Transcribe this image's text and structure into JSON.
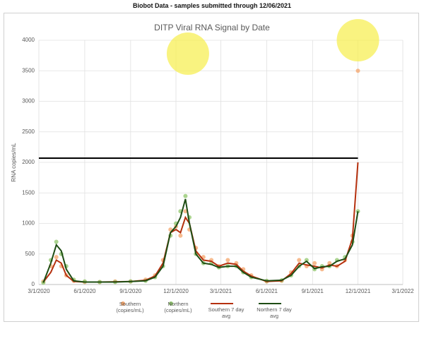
{
  "header": {
    "title": "Biobot Data - samples submitted through 12/06/2021"
  },
  "chart_data": {
    "type": "scatter-line",
    "title": "DITP Viral RNA Signal by Date",
    "y_label": "RNA copies/mL",
    "x": [
      "2020-03-10",
      "2020-03-25",
      "2020-04-05",
      "2020-04-15",
      "2020-04-25",
      "2020-05-10",
      "2020-06-01",
      "2020-07-01",
      "2020-08-01",
      "2020-09-01",
      "2020-10-01",
      "2020-10-20",
      "2020-11-05",
      "2020-11-20",
      "2020-12-01",
      "2020-12-10",
      "2020-12-20",
      "2020-12-28",
      "2021-01-10",
      "2021-01-25",
      "2021-02-10",
      "2021-02-25",
      "2021-03-15",
      "2021-04-01",
      "2021-04-15",
      "2021-05-01",
      "2021-06-01",
      "2021-07-01",
      "2021-07-20",
      "2021-08-05",
      "2021-08-20",
      "2021-09-05",
      "2021-09-20",
      "2021-10-05",
      "2021-10-20",
      "2021-11-05",
      "2021-11-20",
      "2021-12-01"
    ],
    "series": [
      {
        "name": "Southern (copies/mL)",
        "kind": "scatter",
        "color": "#f4a46a",
        "values": [
          50,
          300,
          450,
          300,
          150,
          60,
          40,
          40,
          50,
          50,
          80,
          150,
          400,
          900,
          950,
          800,
          1200,
          900,
          600,
          450,
          400,
          300,
          400,
          350,
          250,
          150,
          50,
          60,
          200,
          400,
          300,
          350,
          250,
          350,
          300,
          400,
          800,
          3500
        ]
      },
      {
        "name": "Northern (copies/mL)",
        "kind": "scatter",
        "color": "#8fc66b",
        "values": [
          30,
          400,
          700,
          500,
          300,
          80,
          50,
          40,
          40,
          50,
          60,
          120,
          300,
          800,
          1000,
          1200,
          1450,
          1100,
          500,
          350,
          350,
          280,
          300,
          300,
          200,
          120,
          60,
          70,
          150,
          300,
          400,
          250,
          300,
          300,
          400,
          450,
          700,
          1200
        ]
      },
      {
        "name": "Southern 7 day avg",
        "kind": "line",
        "color": "#b5300e",
        "values": [
          40,
          200,
          400,
          350,
          150,
          50,
          40,
          40,
          45,
          50,
          70,
          140,
          350,
          850,
          900,
          850,
          1100,
          1000,
          550,
          400,
          380,
          300,
          350,
          330,
          220,
          140,
          50,
          60,
          180,
          350,
          320,
          300,
          270,
          320,
          300,
          380,
          750,
          2000
        ]
      },
      {
        "name": "Northern 7 day avg",
        "kind": "line",
        "color": "#1e4d14",
        "values": [
          30,
          350,
          650,
          550,
          250,
          60,
          40,
          40,
          40,
          50,
          60,
          120,
          300,
          850,
          950,
          1100,
          1400,
          1000,
          500,
          350,
          330,
          280,
          300,
          300,
          200,
          120,
          60,
          70,
          150,
          300,
          380,
          260,
          290,
          300,
          380,
          420,
          650,
          1200
        ]
      }
    ],
    "xlim": [
      "2020-03-01",
      "2022-03-01"
    ],
    "xticks": [
      {
        "value": "2020-03-01",
        "label": "3/1/2020"
      },
      {
        "value": "2020-06-01",
        "label": "6/1/2020"
      },
      {
        "value": "2020-09-01",
        "label": "9/1/2020"
      },
      {
        "value": "2020-12-01",
        "label": "12/1/2020"
      },
      {
        "value": "2021-03-01",
        "label": "3/1/2021"
      },
      {
        "value": "2021-06-01",
        "label": "6/1/2021"
      },
      {
        "value": "2021-09-01",
        "label": "9/1/2021"
      },
      {
        "value": "2021-12-01",
        "label": "12/1/2021"
      },
      {
        "value": "2022-03-01",
        "label": "3/1/2022"
      }
    ],
    "ylim": [
      0,
      4000
    ],
    "yticks": [
      0,
      500,
      1000,
      1500,
      2000,
      2500,
      3000,
      3500,
      4000
    ],
    "grid": true,
    "reference_line": {
      "y": 2070,
      "x": [
        "2020-03-01",
        "2021-12-01"
      ],
      "color": "#000000"
    },
    "highlights": [
      {
        "x": "2020-12-25",
        "y": 3780
      },
      {
        "x": "2021-12-01",
        "y": 4000
      }
    ],
    "highlight_color": "#f7ee4a"
  }
}
